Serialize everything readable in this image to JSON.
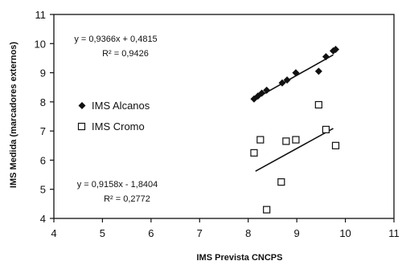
{
  "chart_data": {
    "type": "scatter",
    "xlabel": "IMS Prevista CNCPS",
    "ylabel": "IMS Medida (marcadores externos)",
    "xlim": [
      4,
      11
    ],
    "ylim": [
      4,
      11
    ],
    "xticks": [
      "4",
      "5",
      "6",
      "7",
      "8",
      "9",
      "10",
      "11"
    ],
    "yticks": [
      "4",
      "5",
      "6",
      "7",
      "8",
      "9",
      "10",
      "11"
    ],
    "grid": false,
    "legend_position": "left-center",
    "series": [
      {
        "name": "IMS Alcanos",
        "marker": "filled-diamond",
        "color": "#111111",
        "points": [
          {
            "x": 8.12,
            "y": 8.1
          },
          {
            "x": 8.2,
            "y": 8.2
          },
          {
            "x": 8.28,
            "y": 8.3
          },
          {
            "x": 8.38,
            "y": 8.4
          },
          {
            "x": 8.7,
            "y": 8.65
          },
          {
            "x": 8.8,
            "y": 8.75
          },
          {
            "x": 8.98,
            "y": 9.0
          },
          {
            "x": 9.45,
            "y": 9.05
          },
          {
            "x": 9.6,
            "y": 9.55
          },
          {
            "x": 9.75,
            "y": 9.75
          },
          {
            "x": 9.8,
            "y": 9.8
          }
        ],
        "trendline": {
          "x": [
            8.1,
            9.75
          ],
          "y": [
            8.067,
            9.613
          ]
        },
        "equation": "y = 0,9366x + 0,4815",
        "r2": "R² = 0,9426"
      },
      {
        "name": "IMS Cromo",
        "marker": "open-square",
        "color": "#111111",
        "points": [
          {
            "x": 8.12,
            "y": 6.25
          },
          {
            "x": 8.25,
            "y": 6.7
          },
          {
            "x": 8.38,
            "y": 4.3
          },
          {
            "x": 8.68,
            "y": 5.25
          },
          {
            "x": 8.78,
            "y": 6.65
          },
          {
            "x": 8.98,
            "y": 6.7
          },
          {
            "x": 9.45,
            "y": 7.9
          },
          {
            "x": 9.6,
            "y": 7.05
          },
          {
            "x": 9.8,
            "y": 6.5
          }
        ],
        "trendline": {
          "x": [
            8.15,
            9.75
          ],
          "y": [
            5.622,
            7.087
          ]
        },
        "equation": "y = 0,9158x - 1,8404",
        "r2": "R² = 0,2772"
      }
    ]
  }
}
